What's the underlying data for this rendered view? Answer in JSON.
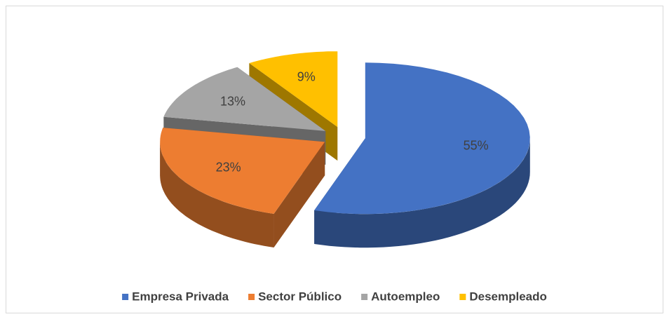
{
  "chart_data": {
    "type": "pie3d",
    "categories": [
      "Empresa Privada",
      "Sector Público",
      "Autoempleo",
      "Desempleado"
    ],
    "values": [
      55,
      23,
      13,
      9
    ],
    "value_labels": [
      "55%",
      "23%",
      "13%",
      "9%"
    ],
    "colors": [
      "#4472c4",
      "#ed7d31",
      "#a5a5a5",
      "#ffc000"
    ],
    "legend": "bottom"
  }
}
